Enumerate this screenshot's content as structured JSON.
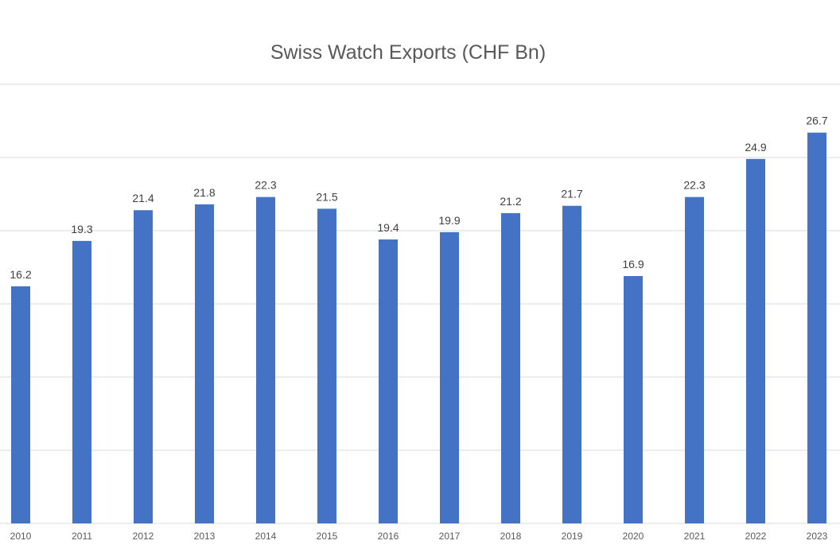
{
  "chart_data": {
    "type": "bar",
    "title": "Swiss Watch Exports (CHF Bn)",
    "xlabel": "",
    "ylabel": "",
    "categories": [
      "2010",
      "2011",
      "2012",
      "2013",
      "2014",
      "2015",
      "2016",
      "2017",
      "2018",
      "2019",
      "2020",
      "2021",
      "2022",
      "2023"
    ],
    "values": [
      16.2,
      19.3,
      21.4,
      21.8,
      22.3,
      21.5,
      19.4,
      19.9,
      21.2,
      21.7,
      16.9,
      22.3,
      24.9,
      26.7
    ],
    "ylim": [
      0,
      30
    ],
    "grid": true,
    "legend": "none",
    "bar_color": "#4472c4"
  }
}
